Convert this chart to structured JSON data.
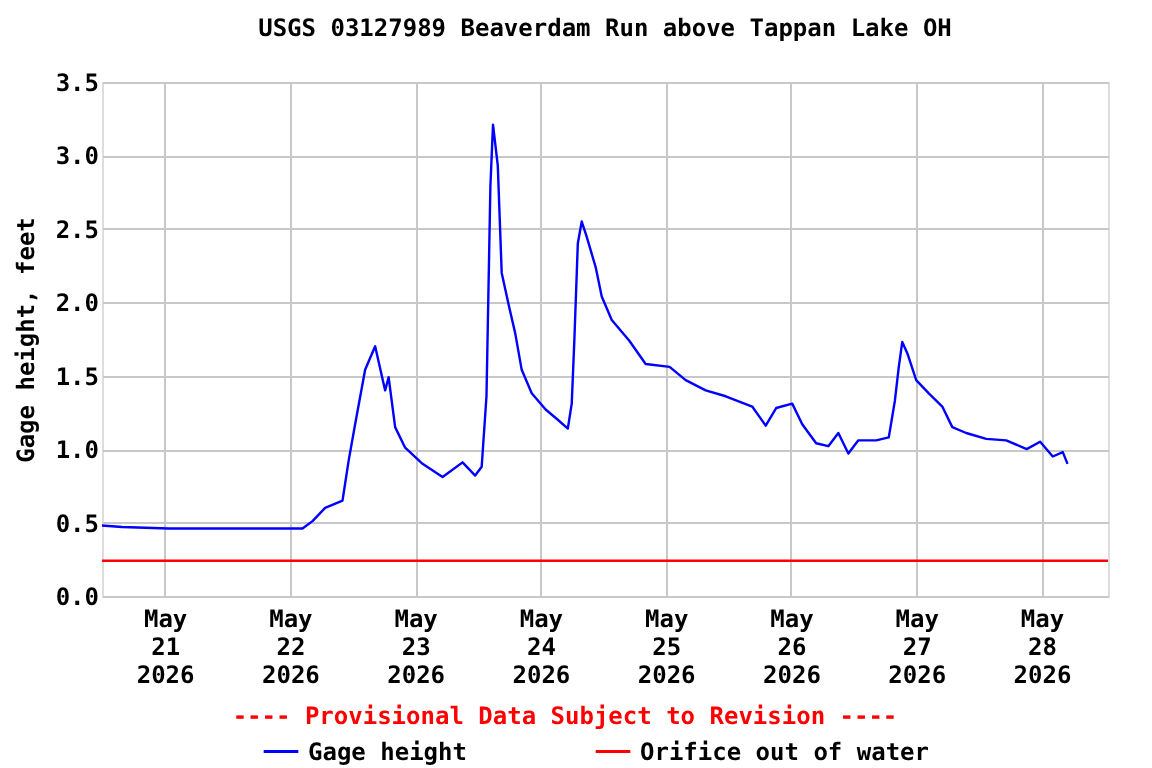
{
  "chart_data": {
    "type": "line",
    "title": "USGS 03127989 Beaverdam Run above Tappan Lake OH",
    "ylabel": "Gage height, feet",
    "annotations": [
      "---- Provisional Data Subject to Revision ----"
    ],
    "xlim": [
      "2026-05-20T12:00",
      "2026-05-28T12:45"
    ],
    "xticks": [
      {
        "value": "2026-05-21T00:00",
        "label": "May\n21\n2026"
      },
      {
        "value": "2026-05-22T00:00",
        "label": "May\n22\n2026"
      },
      {
        "value": "2026-05-23T00:00",
        "label": "May\n23\n2026"
      },
      {
        "value": "2026-05-24T00:00",
        "label": "May\n24\n2026"
      },
      {
        "value": "2026-05-25T00:00",
        "label": "May\n25\n2026"
      },
      {
        "value": "2026-05-26T00:00",
        "label": "May\n26\n2026"
      },
      {
        "value": "2026-05-27T00:00",
        "label": "May\n27\n2026"
      },
      {
        "value": "2026-05-28T00:00",
        "label": "May\n28\n2026"
      }
    ],
    "ylim": [
      0,
      3.5
    ],
    "yticks": [
      {
        "value": 0,
        "label": "0.0"
      },
      {
        "value": 0.5,
        "label": "0.5"
      },
      {
        "value": 1,
        "label": "1.0"
      },
      {
        "value": 1.5,
        "label": "1.5"
      },
      {
        "value": 2,
        "label": "2.0"
      },
      {
        "value": 2.5,
        "label": "2.5"
      },
      {
        "value": 3,
        "label": "3.0"
      },
      {
        "value": 3.5,
        "label": "3.5"
      }
    ],
    "grid": true,
    "legend": "bottom",
    "line_style": "solid",
    "marker": "none",
    "series": [
      {
        "name": "Gage height",
        "color": "#0000ff",
        "x": [
          "2026-05-20T12:00",
          "2026-05-20T15:50",
          "2026-05-21T00:45",
          "2026-05-22T02:25",
          "2026-05-22T04:20",
          "2026-05-22T06:45",
          "2026-05-22T10:05",
          "2026-05-22T11:15",
          "2026-05-22T12:30",
          "2026-05-22T14:25",
          "2026-05-22T16:20",
          "2026-05-22T18:15",
          "2026-05-22T18:55",
          "2026-05-22T20:10",
          "2026-05-22T22:05",
          "2026-05-23T01:25",
          "2026-05-23T05:15",
          "2026-05-23T09:05",
          "2026-05-23T11:30",
          "2026-05-23T12:45",
          "2026-05-23T13:40",
          "2026-05-23T14:25",
          "2026-05-23T14:55",
          "2026-05-23T15:50",
          "2026-05-23T16:35",
          "2026-05-23T18:00",
          "2026-05-23T19:10",
          "2026-05-23T20:25",
          "2026-05-23T22:20",
          "2026-05-24T01:00",
          "2026-05-24T03:20",
          "2026-05-24T05:15",
          "2026-05-24T06:00",
          "2026-05-24T06:30",
          "2026-05-24T07:10",
          "2026-05-24T07:55",
          "2026-05-24T08:50",
          "2026-05-24T10:35",
          "2026-05-24T11:45",
          "2026-05-24T13:40",
          "2026-05-24T17:00",
          "2026-05-24T20:10",
          "2026-05-25T00:45",
          "2026-05-25T03:50",
          "2026-05-25T07:40",
          "2026-05-25T11:30",
          "2026-05-25T16:35",
          "2026-05-25T19:10",
          "2026-05-25T21:10",
          "2026-05-26T00:15",
          "2026-05-26T02:10",
          "2026-05-26T04:50",
          "2026-05-26T07:10",
          "2026-05-26T09:05",
          "2026-05-26T11:00",
          "2026-05-26T12:55",
          "2026-05-26T16:20",
          "2026-05-26T18:45",
          "2026-05-26T19:55",
          "2026-05-26T20:40",
          "2026-05-26T21:20",
          "2026-05-26T22:20",
          "2026-05-27T00:00",
          "2026-05-27T02:25",
          "2026-05-27T05:00",
          "2026-05-27T06:55",
          "2026-05-27T09:35",
          "2026-05-27T13:25",
          "2026-05-27T17:15",
          "2026-05-27T21:10",
          "2026-05-27T23:45",
          "2026-05-28T02:10",
          "2026-05-28T04:05",
          "2026-05-28T05:00"
        ],
        "values": [
          0.48,
          0.47,
          0.46,
          0.46,
          0.51,
          0.6,
          0.65,
          0.92,
          1.17,
          1.54,
          1.7,
          1.4,
          1.49,
          1.15,
          1.01,
          0.9,
          0.81,
          0.91,
          0.82,
          0.88,
          1.36,
          2.79,
          3.21,
          2.93,
          2.2,
          1.97,
          1.79,
          1.54,
          1.38,
          1.27,
          1.2,
          1.14,
          1.31,
          1.74,
          2.4,
          2.55,
          2.45,
          2.24,
          2.04,
          1.88,
          1.74,
          1.58,
          1.56,
          1.47,
          1.4,
          1.36,
          1.29,
          1.16,
          1.28,
          1.31,
          1.17,
          1.04,
          1.02,
          1.11,
          0.97,
          1.06,
          1.06,
          1.08,
          1.33,
          1.56,
          1.73,
          1.65,
          1.47,
          1.38,
          1.29,
          1.15,
          1.11,
          1.07,
          1.06,
          1.0,
          1.05,
          0.95,
          0.98,
          0.9
        ]
      },
      {
        "name": "Orifice out of water",
        "color": "#ff0000",
        "x": [
          "2026-05-20T12:00",
          "2026-05-28T12:45"
        ],
        "values": [
          0.24,
          0.24
        ]
      }
    ]
  }
}
